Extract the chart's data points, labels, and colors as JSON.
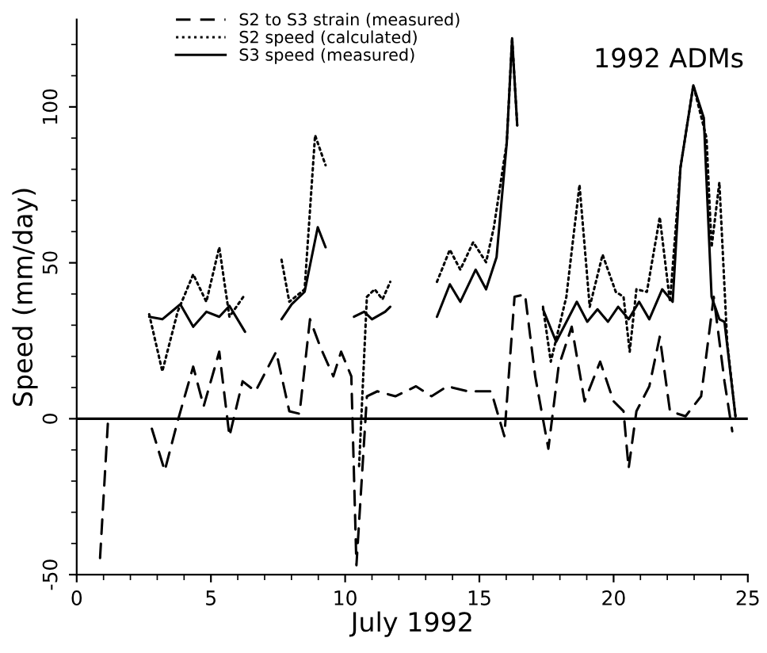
{
  "chart_data": {
    "type": "line",
    "xlabel": "July 1992",
    "ylabel": "Speed (mm/day)",
    "annotations": [
      "1992 ADMs"
    ],
    "xlim": [
      0,
      25
    ],
    "xticks": [
      0,
      5,
      10,
      15,
      20,
      25
    ],
    "ylim": [
      -50,
      128
    ],
    "yticks": [
      -50,
      0,
      50,
      100
    ],
    "grid": false,
    "legend": "top",
    "marker": "none",
    "ref_lines": [
      {
        "axis": "y",
        "value": 0,
        "color": "#000000",
        "line_style": "solid"
      }
    ],
    "series": [
      {
        "name": "S2 to S3 strain (measured)",
        "color": "#000000",
        "line_style": "dashed",
        "x": [
          0.87,
          1.16,
          2.0,
          2.8,
          3.28,
          3.76,
          4.34,
          4.73,
          5.31,
          5.69,
          6.18,
          6.66,
          7.43,
          7.92,
          8.3,
          8.69,
          9.07,
          9.56,
          9.85,
          10.23,
          10.42,
          10.81,
          11.2,
          11.87,
          12.64,
          13.22,
          13.8,
          14.58,
          15.44,
          15.93,
          16.31,
          16.7,
          17.08,
          17.57,
          17.95,
          18.44,
          18.92,
          19.5,
          20.0,
          20.37,
          20.56,
          20.85,
          21.33,
          21.72,
          22.1,
          22.68,
          23.26,
          23.73,
          24.13,
          24.42
        ],
        "values": [
          -44.7,
          -1.6,
          null,
          -3.2,
          -16.7,
          -0.8,
          16.7,
          4.0,
          21.5,
          -5.6,
          12.0,
          8.8,
          21.5,
          2.4,
          1.6,
          31.9,
          23.1,
          13.6,
          21.5,
          13.6,
          -47.0,
          7.2,
          8.8,
          7.2,
          10.4,
          7.2,
          10.4,
          8.8,
          8.8,
          -5.6,
          39.1,
          39.9,
          13.6,
          -9.6,
          16.7,
          29.5,
          5.6,
          18.3,
          5.6,
          2.4,
          -15.9,
          2.4,
          10.4,
          26.3,
          2.4,
          0.8,
          7.2,
          39.1,
          12.0,
          -4.0
        ]
      },
      {
        "name": "S2 speed (calculated)",
        "color": "#000000",
        "line_style": "dotted",
        "x": [
          2.7,
          3.19,
          3.76,
          4.34,
          4.83,
          5.31,
          5.69,
          6.27,
          7.0,
          7.63,
          7.92,
          8.49,
          8.88,
          9.27,
          10.0,
          10.52,
          10.81,
          11.1,
          11.39,
          11.68,
          12.5,
          13.42,
          13.9,
          14.29,
          14.77,
          15.25,
          15.54,
          16.02,
          16.22,
          16.41,
          17.0,
          17.37,
          17.66,
          18.24,
          18.73,
          19.11,
          19.59,
          20.08,
          20.37,
          20.6,
          20.85,
          21.24,
          21.72,
          22.1,
          22.49,
          22.97,
          23.46,
          23.65,
          23.94,
          24.23,
          24.54
        ],
        "values": [
          33.5,
          15.2,
          34.3,
          46.3,
          37.5,
          55.0,
          32.7,
          39.9,
          null,
          51.0,
          37.5,
          41.5,
          90.9,
          81.3,
          null,
          -15.2,
          39.1,
          41.5,
          38.3,
          43.9,
          null,
          43.9,
          54.2,
          47.8,
          56.6,
          50.2,
          61.4,
          88.5,
          122,
          94.1,
          null,
          35.9,
          18.3,
          39.1,
          75.0,
          35.9,
          52.6,
          40.7,
          39.1,
          21.5,
          41.5,
          40.7,
          64.6,
          37.5,
          80.5,
          106.9,
          90.1,
          55.0,
          75.8,
          24.7,
          0.8
        ]
      },
      {
        "name": "S3 speed (measured)",
        "color": "#000000",
        "line_style": "solid",
        "x": [
          2.7,
          3.19,
          3.86,
          4.34,
          4.83,
          5.31,
          5.69,
          6.27,
          7.0,
          7.63,
          8.01,
          8.49,
          8.98,
          9.27,
          10.0,
          10.33,
          10.71,
          11.0,
          11.49,
          11.68,
          12.5,
          13.42,
          13.9,
          14.29,
          14.86,
          15.25,
          15.64,
          16.02,
          16.22,
          16.41,
          17.0,
          17.37,
          17.86,
          18.15,
          18.63,
          19.02,
          19.4,
          19.79,
          20.17,
          20.56,
          20.95,
          21.33,
          21.81,
          22.2,
          22.49,
          22.97,
          23.36,
          23.65,
          23.94,
          24.13,
          24.54
        ],
        "values": [
          32.7,
          31.9,
          36.7,
          29.5,
          34.3,
          32.7,
          36.2,
          27.9,
          null,
          31.9,
          36.7,
          40.7,
          61.4,
          55.0,
          null,
          32.7,
          34.3,
          31.9,
          34.3,
          35.9,
          null,
          32.7,
          43.1,
          37.5,
          47.8,
          41.5,
          51.8,
          88.5,
          122,
          94.1,
          null,
          35.1,
          24.7,
          29.5,
          37.5,
          31.1,
          35.1,
          31.1,
          35.9,
          31.9,
          37.5,
          31.9,
          41.5,
          37.5,
          80.5,
          106.9,
          96.5,
          39.1,
          31.9,
          31.1,
          0.8
        ]
      }
    ]
  }
}
